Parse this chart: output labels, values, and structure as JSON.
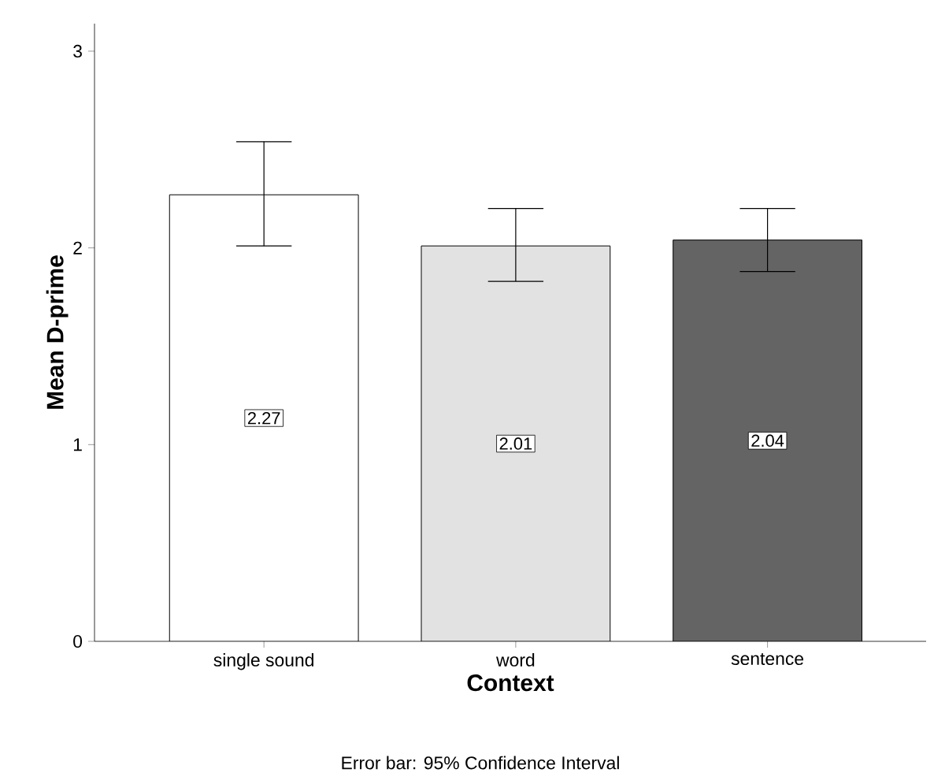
{
  "chart_data": {
    "type": "bar",
    "xlabel": "Context",
    "ylabel": "Mean D-prime",
    "categories": [
      "single sound",
      "word",
      "sentence"
    ],
    "values": [
      2.27,
      2.01,
      2.04
    ],
    "colors": [
      "#ffffff",
      "#e2e2e2",
      "#646464"
    ],
    "errors": [
      [
        2.01,
        2.54
      ],
      [
        1.83,
        2.2
      ],
      [
        1.88,
        2.2
      ]
    ],
    "data_labels": true,
    "ylim": [
      0,
      3.14
    ],
    "yticks": [
      0,
      1,
      2,
      3
    ],
    "annotations": [
      "Error bar: 95% Confidence Interval"
    ]
  }
}
